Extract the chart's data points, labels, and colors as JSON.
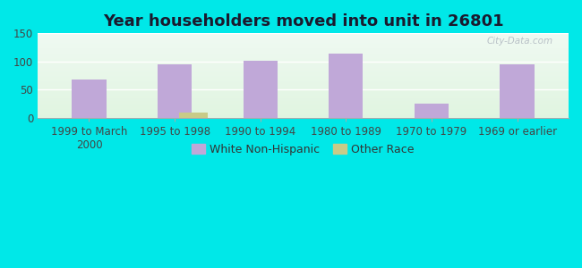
{
  "title": "Year householders moved into unit in 26801",
  "categories": [
    "1999 to March\n2000",
    "1995 to 1998",
    "1990 to 1994",
    "1980 to 1989",
    "1970 to 1979",
    "1969 or earlier"
  ],
  "white_values": [
    68,
    95,
    101,
    114,
    26,
    95
  ],
  "other_values": [
    0,
    10,
    0,
    0,
    0,
    0
  ],
  "white_color": "#c0a8d8",
  "other_color": "#c8cb88",
  "background_outer": "#00e8e8",
  "background_plot_topleft": "#d8ede0",
  "background_plot_topright": "#eef8f8",
  "background_plot_bottom": "#e0f0dc",
  "ylim": [
    0,
    150
  ],
  "yticks": [
    0,
    50,
    100,
    150
  ],
  "title_fontsize": 13,
  "tick_fontsize": 8.5,
  "legend_fontsize": 9,
  "bar_width": 0.4,
  "watermark": "City-Data.com"
}
